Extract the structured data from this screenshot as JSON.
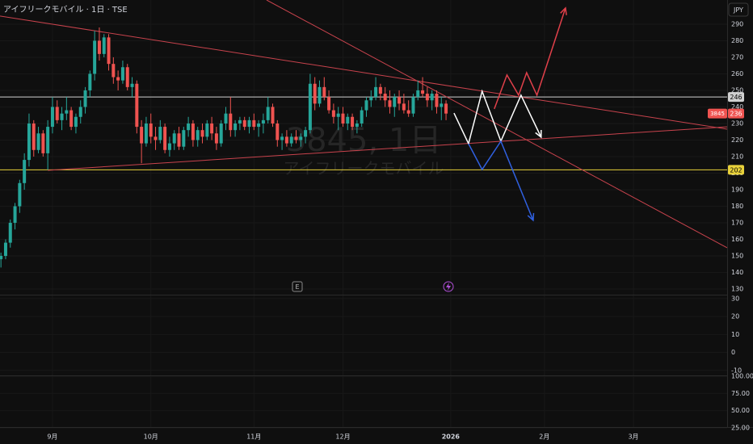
{
  "chart_data": {
    "type": "candlestick",
    "title": "アイフリークモバイル · 1日 · TSE",
    "watermark": "3845, 1日",
    "watermark_name": "アイフリークモバイル",
    "currency": "JPY",
    "event_label": "E",
    "up_color": "#26a69a",
    "down_color": "#ef5350",
    "open": [
      148,
      150,
      158,
      170,
      180,
      194,
      208,
      230,
      214,
      224,
      212,
      228,
      240,
      232,
      236,
      238,
      228,
      234,
      240,
      250,
      260,
      280,
      272,
      282,
      266,
      258,
      256,
      264,
      252,
      254,
      228,
      218,
      230,
      222,
      220,
      228,
      214,
      218,
      224,
      216,
      226,
      230,
      220,
      226,
      222,
      230,
      224,
      218,
      230,
      236,
      226,
      230,
      232,
      228,
      232,
      228,
      230,
      232,
      240,
      230,
      220,
      222,
      218,
      222,
      220,
      222,
      226,
      254,
      242,
      252,
      246,
      238,
      234,
      236,
      230,
      234,
      228,
      230,
      238,
      244,
      246,
      252,
      248,
      244,
      240,
      246,
      242,
      238,
      236,
      246,
      250,
      248,
      244,
      248,
      240,
      242
    ],
    "high": [
      152,
      160,
      172,
      182,
      196,
      212,
      236,
      232,
      228,
      226,
      232,
      246,
      244,
      240,
      246,
      240,
      236,
      244,
      252,
      262,
      286,
      288,
      284,
      284,
      270,
      262,
      268,
      266,
      258,
      256,
      232,
      234,
      236,
      228,
      232,
      230,
      222,
      226,
      228,
      228,
      234,
      232,
      228,
      230,
      232,
      234,
      228,
      232,
      240,
      246,
      232,
      234,
      234,
      234,
      236,
      232,
      236,
      246,
      242,
      232,
      224,
      226,
      224,
      226,
      224,
      228,
      260,
      258,
      256,
      258,
      250,
      242,
      240,
      240,
      236,
      236,
      232,
      240,
      246,
      250,
      258,
      254,
      252,
      250,
      248,
      250,
      248,
      244,
      248,
      256,
      258,
      252,
      250,
      250,
      246,
      244
    ],
    "low": [
      143,
      148,
      155,
      166,
      176,
      190,
      204,
      210,
      212,
      210,
      202,
      224,
      230,
      226,
      232,
      226,
      224,
      230,
      236,
      246,
      256,
      268,
      270,
      262,
      254,
      250,
      254,
      250,
      246,
      224,
      206,
      216,
      218,
      214,
      218,
      212,
      210,
      214,
      214,
      214,
      222,
      216,
      216,
      218,
      220,
      220,
      214,
      216,
      226,
      222,
      222,
      226,
      226,
      224,
      226,
      222,
      224,
      230,
      228,
      216,
      214,
      216,
      216,
      218,
      216,
      218,
      224,
      238,
      240,
      244,
      236,
      230,
      226,
      228,
      226,
      226,
      224,
      228,
      234,
      240,
      244,
      244,
      240,
      236,
      234,
      238,
      236,
      234,
      234,
      244,
      246,
      240,
      238,
      236,
      232,
      232
    ],
    "close": [
      150,
      158,
      170,
      180,
      194,
      208,
      230,
      214,
      224,
      212,
      228,
      240,
      232,
      236,
      238,
      228,
      234,
      240,
      250,
      260,
      280,
      272,
      282,
      266,
      258,
      256,
      264,
      252,
      254,
      228,
      218,
      230,
      222,
      220,
      228,
      214,
      218,
      224,
      216,
      226,
      230,
      220,
      226,
      222,
      230,
      224,
      218,
      230,
      236,
      226,
      230,
      232,
      228,
      232,
      228,
      230,
      232,
      240,
      230,
      220,
      222,
      218,
      222,
      220,
      222,
      226,
      254,
      242,
      252,
      246,
      238,
      234,
      236,
      230,
      234,
      228,
      230,
      238,
      244,
      246,
      252,
      248,
      244,
      240,
      246,
      242,
      238,
      236,
      246,
      250,
      248,
      244,
      248,
      240,
      242,
      236
    ],
    "xlim": [
      -0.2,
      155
    ],
    "xticks": [
      {
        "value": 11,
        "label": "9月"
      },
      {
        "value": 32,
        "label": "10月"
      },
      {
        "value": 54,
        "label": "11月"
      },
      {
        "value": 73,
        "label": "12月"
      },
      {
        "value": 96,
        "label": "2026"
      },
      {
        "value": 116,
        "label": "2月"
      },
      {
        "value": 135,
        "label": "3月"
      }
    ],
    "ylim": [
      126.6,
      304.6
    ],
    "yticks": [
      130,
      140,
      150,
      160,
      170,
      180,
      190,
      200,
      210,
      220,
      230,
      240,
      250,
      260,
      270,
      280,
      290
    ],
    "price_levels": [
      {
        "value": 246,
        "color": "#d0d0d0"
      },
      {
        "value": 202,
        "color": "#e8d13a"
      }
    ],
    "last_price": {
      "value": 236,
      "symbol": "3845"
    },
    "trend_lines": [
      {
        "color": "#c9434d",
        "x": [
          -0.2,
          155
        ],
        "y": [
          294.9,
          226.6
        ]
      },
      {
        "color": "#c9434d",
        "x": [
          56.7,
          155
        ],
        "y": [
          304.6,
          154.9
        ]
      },
      {
        "color": "#c9434d",
        "x": [
          10,
          155
        ],
        "y": [
          201.7,
          228.0
        ]
      }
    ],
    "paths": [
      {
        "color": "#ffffff",
        "x": [
          96.7,
          99.8,
          102.7,
          106.7,
          111,
          115.3
        ],
        "y": [
          236.3,
          217.8,
          249.5,
          219.3,
          247.1,
          221.7
        ]
      },
      {
        "color": "#e0404a",
        "x": [
          105.3,
          108,
          110.5,
          112.2,
          114.4,
          120.5
        ],
        "y": [
          238.8,
          259.3,
          247.1,
          260.7,
          247.1,
          299.8
        ]
      },
      {
        "color": "#3060e0",
        "x": [
          99.8,
          102.7,
          106.7,
          113.6
        ],
        "y": [
          217.8,
          202.2,
          219.3,
          171.5
        ]
      }
    ],
    "panes": [
      {
        "ylim": [
          32.2,
          -12.8
        ],
        "yticks": [
          30,
          20,
          10,
          0,
          -10
        ]
      },
      {
        "ylim": [
          101.2,
          19.1
        ],
        "yticks": [
          {
            "value": 100,
            "label": "100.00"
          },
          {
            "value": 75,
            "label": "75.00"
          },
          {
            "value": 50,
            "label": "50.00"
          },
          {
            "value": 25,
            "label": "25.00"
          }
        ]
      }
    ]
  }
}
